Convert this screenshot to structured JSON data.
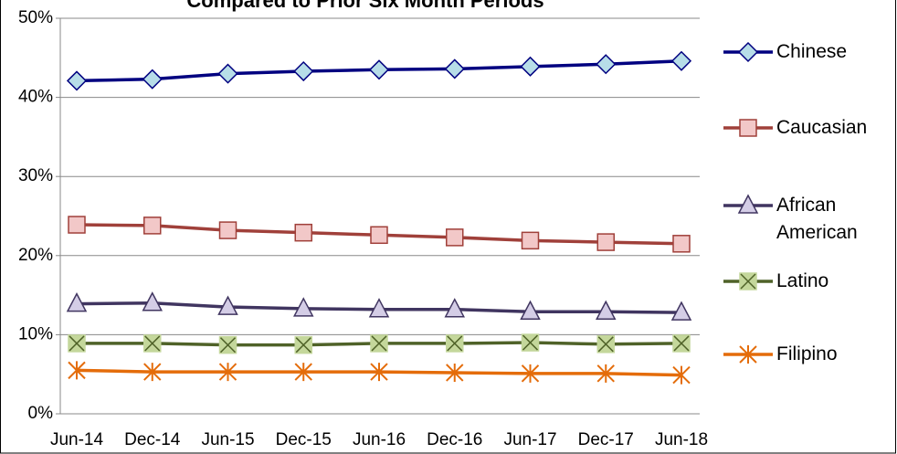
{
  "chart_data": {
    "type": "line",
    "title": "Compared to Prior Six Month Periods",
    "categories": [
      "Jun-14",
      "Dec-14",
      "Jun-15",
      "Dec-15",
      "Jun-16",
      "Dec-16",
      "Jun-17",
      "Dec-17",
      "Jun-18"
    ],
    "series": [
      {
        "name": "Chinese",
        "color": "#000080",
        "marker_fill": "#b7dde8",
        "marker": "diamond",
        "values": [
          42.1,
          42.3,
          43.0,
          43.3,
          43.5,
          43.6,
          43.9,
          44.2,
          44.6
        ]
      },
      {
        "name": "Caucasian",
        "color": "#a0403a",
        "marker_fill": "#f2c8c8",
        "marker": "square",
        "values": [
          23.9,
          23.8,
          23.2,
          22.9,
          22.6,
          22.3,
          21.9,
          21.7,
          21.5
        ]
      },
      {
        "name": "African American",
        "color": "#403560",
        "marker_fill": "#d4cde6",
        "marker": "triangle",
        "values": [
          13.9,
          14.0,
          13.5,
          13.3,
          13.2,
          13.2,
          12.9,
          12.9,
          12.8
        ]
      },
      {
        "name": "Latino",
        "color": "#4f6228",
        "marker_fill": "#c4d79b",
        "marker": "xbox",
        "values": [
          8.9,
          8.9,
          8.7,
          8.7,
          8.9,
          8.9,
          9.0,
          8.8,
          8.9
        ]
      },
      {
        "name": "Filipino",
        "color": "#e46c0a",
        "marker_fill": "#e46c0a",
        "marker": "star",
        "values": [
          5.5,
          5.3,
          5.3,
          5.3,
          5.3,
          5.2,
          5.1,
          5.1,
          4.9
        ]
      }
    ],
    "ylim": [
      0,
      50
    ],
    "yticks": [
      {
        "value": 0,
        "label": "0%"
      },
      {
        "value": 10,
        "label": "10%"
      },
      {
        "value": 20,
        "label": "20%"
      },
      {
        "value": 30,
        "label": "30%"
      },
      {
        "value": 40,
        "label": "40%"
      },
      {
        "value": 50,
        "label": "50%"
      }
    ],
    "grid": true
  }
}
